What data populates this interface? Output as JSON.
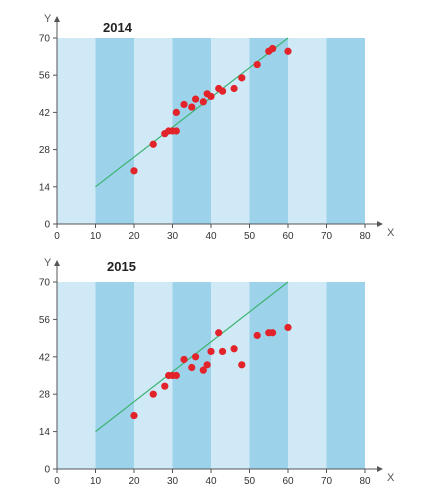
{
  "colors": {
    "band_light": "#cfe9f6",
    "band_dark": "#9cd3ea",
    "point": "#e2232a",
    "trend": "#3cb371",
    "axis": "#555555",
    "background": "#ffffff"
  },
  "chart_data": [
    {
      "type": "scatter",
      "title": "2014",
      "xlabel": "X",
      "ylabel": "Y",
      "xlim": [
        0,
        80
      ],
      "ylim": [
        0,
        70
      ],
      "xticks": [
        0,
        10,
        20,
        30,
        40,
        50,
        60,
        70,
        80
      ],
      "yticks": [
        0,
        14,
        28,
        42,
        56,
        70
      ],
      "grid": "alternating vertical bands",
      "legend": "none",
      "series": [
        {
          "x": [
            20,
            25,
            28,
            29,
            30,
            31,
            31,
            33,
            35,
            36,
            38,
            39,
            40,
            42,
            43,
            46,
            48,
            52,
            55,
            56,
            56,
            60
          ],
          "y": [
            20,
            30,
            34,
            35,
            35,
            35,
            42,
            45,
            44,
            47,
            46,
            49,
            48,
            51,
            50,
            51,
            55,
            60,
            65,
            66,
            66,
            65
          ]
        }
      ],
      "trendline": {
        "x": [
          10,
          60
        ],
        "y": [
          14,
          70
        ]
      }
    },
    {
      "type": "scatter",
      "title": "2015",
      "xlabel": "X",
      "ylabel": "Y",
      "xlim": [
        0,
        80
      ],
      "ylim": [
        0,
        70
      ],
      "xticks": [
        0,
        10,
        20,
        30,
        40,
        50,
        60,
        70,
        80
      ],
      "yticks": [
        0,
        14,
        28,
        42,
        56,
        70
      ],
      "grid": "alternating vertical bands",
      "legend": "none",
      "series": [
        {
          "x": [
            20,
            25,
            28,
            29,
            30,
            31,
            33,
            35,
            36,
            38,
            39,
            40,
            42,
            43,
            46,
            48,
            52,
            55,
            56,
            60
          ],
          "y": [
            20,
            28,
            31,
            35,
            35,
            35,
            41,
            38,
            42,
            37,
            39,
            44,
            51,
            44,
            45,
            39,
            50,
            51,
            51,
            53
          ]
        }
      ],
      "trendline": {
        "x": [
          10,
          60
        ],
        "y": [
          14,
          70
        ]
      }
    }
  ]
}
